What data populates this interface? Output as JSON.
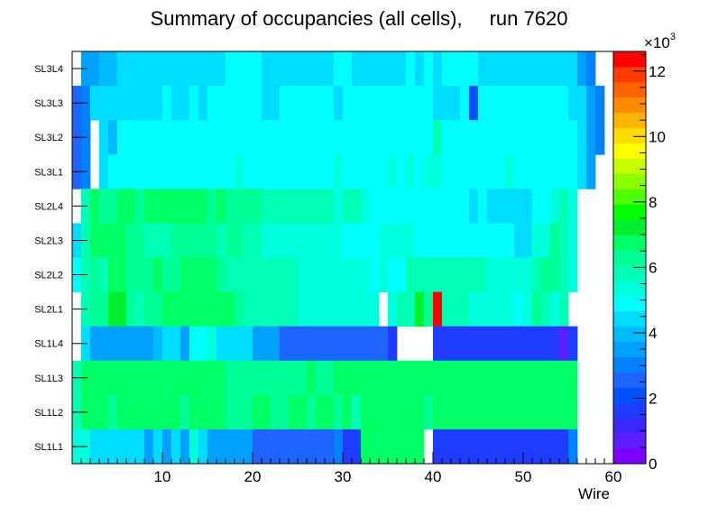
{
  "chart_data": {
    "type": "heatmap",
    "title": "Summary of occupancies (all cells),",
    "run_label": "run 7620",
    "xlabel": "Wire",
    "ylabel": "",
    "xlim": [
      0,
      60
    ],
    "x_ticks": [
      "10",
      "20",
      "30",
      "40",
      "50",
      "60"
    ],
    "layers": [
      "SL3L4",
      "SL3L3",
      "SL3L2",
      "SL3L1",
      "SL2L4",
      "SL2L3",
      "SL2L2",
      "SL2L1",
      "SL1L4",
      "SL1L3",
      "SL1L2",
      "SL1L1"
    ],
    "colorbar": {
      "min": 0,
      "max": 12.6,
      "multiplier": "×10",
      "multiplier_exponent": "3",
      "ticks": [
        "0",
        "2",
        "4",
        "6",
        "8",
        "10",
        "12"
      ]
    },
    "palette": [
      "#8000ff",
      "#5a1eff",
      "#3c28ff",
      "#1e3cff",
      "#0050ff",
      "#1e64ff",
      "#0082ff",
      "#00a0ff",
      "#00bcff",
      "#00ddff",
      "#00ffff",
      "#00ffdc",
      "#00ffb4",
      "#00ff96",
      "#00ff64",
      "#00f030",
      "#00ff00",
      "#50ff00",
      "#8cff00",
      "#c8ff00",
      "#ffff00",
      "#ffdc00",
      "#ffb400",
      "#ff8c00",
      "#ff6400",
      "#ff3c00",
      "#ff0000"
    ],
    "occupancy_thousands": {
      "SL3L4": {
        "segments": [
          [
            1,
            1,
            null
          ],
          [
            2,
            3,
            3.6
          ],
          [
            4,
            5,
            3.9
          ],
          [
            6,
            17,
            4.4
          ],
          [
            18,
            21,
            4.8
          ],
          [
            22,
            29,
            4.4
          ],
          [
            30,
            31,
            4.8
          ],
          [
            32,
            37,
            4.4
          ],
          [
            38,
            38,
            4.8
          ],
          [
            39,
            39,
            4.4
          ],
          [
            40,
            40,
            4.8
          ],
          [
            41,
            41,
            4.4
          ],
          [
            42,
            45,
            4.8
          ],
          [
            46,
            56,
            4.4
          ],
          [
            57,
            57,
            3.6
          ],
          [
            58,
            58,
            3.0
          ],
          [
            59,
            60,
            null
          ]
        ]
      },
      "SL3L3": {
        "segments": [
          [
            1,
            1,
            2.5
          ],
          [
            2,
            2,
            3.2
          ],
          [
            3,
            10,
            4.4
          ],
          [
            11,
            11,
            4.8
          ],
          [
            12,
            13,
            4.4
          ],
          [
            14,
            14,
            4.8
          ],
          [
            15,
            15,
            4.4
          ],
          [
            16,
            16,
            4.8
          ],
          [
            17,
            21,
            4.8
          ],
          [
            22,
            23,
            4.4
          ],
          [
            24,
            29,
            4.8
          ],
          [
            30,
            30,
            4.4
          ],
          [
            31,
            40,
            4.8
          ],
          [
            41,
            43,
            4.4
          ],
          [
            44,
            44,
            4.8
          ],
          [
            45,
            45,
            2.2
          ],
          [
            46,
            55,
            4.8
          ],
          [
            56,
            57,
            4.4
          ],
          [
            58,
            58,
            3.6
          ],
          [
            59,
            59,
            3.2
          ],
          [
            60,
            60,
            null
          ]
        ]
      },
      "SL3L2": {
        "segments": [
          [
            1,
            1,
            2.6
          ],
          [
            2,
            2,
            3.2
          ],
          [
            3,
            3,
            null
          ],
          [
            4,
            4,
            4.4
          ],
          [
            5,
            5,
            3.9
          ],
          [
            6,
            40,
            4.8
          ],
          [
            41,
            41,
            5.6
          ],
          [
            42,
            45,
            4.8
          ],
          [
            46,
            56,
            4.8
          ],
          [
            57,
            57,
            4.4
          ],
          [
            58,
            58,
            3.6
          ],
          [
            59,
            59,
            3.2
          ],
          [
            60,
            60,
            null
          ]
        ]
      },
      "SL3L1": {
        "segments": [
          [
            1,
            1,
            2.6
          ],
          [
            2,
            2,
            3.2
          ],
          [
            3,
            3,
            null
          ],
          [
            4,
            4,
            4.4
          ],
          [
            5,
            18,
            4.8
          ],
          [
            19,
            19,
            5.2
          ],
          [
            20,
            29,
            4.8
          ],
          [
            30,
            30,
            5.2
          ],
          [
            31,
            35,
            4.8
          ],
          [
            36,
            36,
            5.2
          ],
          [
            37,
            37,
            4.8
          ],
          [
            38,
            38,
            5.2
          ],
          [
            39,
            39,
            4.8
          ],
          [
            40,
            41,
            5.2
          ],
          [
            42,
            48,
            4.8
          ],
          [
            49,
            49,
            5.2
          ],
          [
            50,
            56,
            4.8
          ],
          [
            57,
            57,
            4.4
          ],
          [
            58,
            58,
            3.6
          ],
          [
            59,
            60,
            null
          ]
        ]
      },
      "SL2L4": {
        "segments": [
          [
            1,
            1,
            null
          ],
          [
            2,
            2,
            5.6
          ],
          [
            3,
            3,
            6.6
          ],
          [
            4,
            5,
            6.2
          ],
          [
            6,
            7,
            6.6
          ],
          [
            8,
            8,
            6.2
          ],
          [
            9,
            15,
            6.6
          ],
          [
            16,
            16,
            6.2
          ],
          [
            17,
            17,
            6.6
          ],
          [
            18,
            21,
            6.2
          ],
          [
            22,
            29,
            5.6
          ],
          [
            30,
            30,
            5.2
          ],
          [
            31,
            32,
            5.6
          ],
          [
            33,
            33,
            5.2
          ],
          [
            34,
            34,
            4.8
          ],
          [
            35,
            37,
            4.8
          ],
          [
            38,
            44,
            4.8
          ],
          [
            45,
            45,
            4.4
          ],
          [
            46,
            46,
            4.8
          ],
          [
            47,
            51,
            4.4
          ],
          [
            52,
            53,
            4.8
          ],
          [
            54,
            54,
            5.2
          ],
          [
            55,
            55,
            5.6
          ],
          [
            56,
            56,
            5.2
          ],
          [
            57,
            60,
            null
          ]
        ]
      },
      "SL2L3": {
        "segments": [
          [
            1,
            1,
            4.4
          ],
          [
            2,
            2,
            5.6
          ],
          [
            3,
            6,
            6.6
          ],
          [
            7,
            8,
            6.2
          ],
          [
            9,
            11,
            5.6
          ],
          [
            12,
            13,
            6.2
          ],
          [
            14,
            15,
            6.2
          ],
          [
            16,
            16,
            6.2
          ],
          [
            17,
            17,
            5.6
          ],
          [
            18,
            19,
            6.2
          ],
          [
            20,
            21,
            5.6
          ],
          [
            22,
            30,
            5.2
          ],
          [
            31,
            34,
            4.8
          ],
          [
            35,
            38,
            5.2
          ],
          [
            39,
            49,
            4.8
          ],
          [
            50,
            51,
            4.4
          ],
          [
            52,
            53,
            5.2
          ],
          [
            54,
            54,
            6.2
          ],
          [
            55,
            55,
            5.6
          ],
          [
            56,
            56,
            5.2
          ],
          [
            57,
            60,
            null
          ]
        ]
      },
      "SL2L2": {
        "segments": [
          [
            1,
            1,
            4.8
          ],
          [
            2,
            2,
            5.6
          ],
          [
            3,
            3,
            6.2
          ],
          [
            4,
            4,
            5.6
          ],
          [
            5,
            6,
            6.6
          ],
          [
            7,
            7,
            6.2
          ],
          [
            8,
            9,
            6.2
          ],
          [
            10,
            10,
            6.6
          ],
          [
            11,
            12,
            6.2
          ],
          [
            13,
            14,
            6.6
          ],
          [
            15,
            16,
            6.6
          ],
          [
            17,
            17,
            6.2
          ],
          [
            18,
            21,
            5.6
          ],
          [
            22,
            23,
            5.6
          ],
          [
            24,
            25,
            5.6
          ],
          [
            26,
            33,
            5.2
          ],
          [
            34,
            34,
            4.8
          ],
          [
            35,
            35,
            5.2
          ],
          [
            36,
            37,
            4.8
          ],
          [
            38,
            41,
            5.6
          ],
          [
            42,
            45,
            5.6
          ],
          [
            46,
            46,
            5.6
          ],
          [
            47,
            51,
            5.2
          ],
          [
            52,
            52,
            5.6
          ],
          [
            53,
            54,
            6.2
          ],
          [
            55,
            55,
            5.6
          ],
          [
            56,
            56,
            5.2
          ],
          [
            57,
            60,
            null
          ]
        ]
      },
      "SL2L1": {
        "segments": [
          [
            1,
            1,
            null
          ],
          [
            2,
            2,
            5.6
          ],
          [
            3,
            4,
            6.2
          ],
          [
            5,
            6,
            7.4
          ],
          [
            7,
            7,
            6.2
          ],
          [
            8,
            8,
            5.6
          ],
          [
            9,
            10,
            6.2
          ],
          [
            11,
            18,
            6.6
          ],
          [
            19,
            19,
            6.2
          ],
          [
            20,
            25,
            5.6
          ],
          [
            26,
            33,
            5.2
          ],
          [
            34,
            34,
            5.2
          ],
          [
            35,
            35,
            null
          ],
          [
            36,
            36,
            5.2
          ],
          [
            37,
            38,
            5.6
          ],
          [
            39,
            39,
            7.4
          ],
          [
            40,
            40,
            6.2
          ],
          [
            41,
            41,
            12.6
          ],
          [
            42,
            44,
            5.6
          ],
          [
            45,
            49,
            5.2
          ],
          [
            50,
            50,
            4.8
          ],
          [
            51,
            51,
            5.2
          ],
          [
            52,
            52,
            6.2
          ],
          [
            53,
            53,
            5.6
          ],
          [
            54,
            54,
            5.2
          ],
          [
            55,
            55,
            5.6
          ],
          [
            56,
            60,
            null
          ]
        ]
      },
      "SL1L4": {
        "segments": [
          [
            1,
            1,
            null
          ],
          [
            2,
            2,
            4.4
          ],
          [
            3,
            4,
            3.6
          ],
          [
            5,
            9,
            3.3
          ],
          [
            10,
            10,
            4.0
          ],
          [
            11,
            12,
            4.4
          ],
          [
            13,
            13,
            3.6
          ],
          [
            14,
            15,
            4.8
          ],
          [
            16,
            16,
            5.2
          ],
          [
            17,
            19,
            4.4
          ],
          [
            20,
            20,
            4.4
          ],
          [
            21,
            23,
            3.3
          ],
          [
            24,
            35,
            2.6
          ],
          [
            36,
            36,
            1.6
          ],
          [
            37,
            40,
            null
          ],
          [
            41,
            54,
            1.7
          ],
          [
            55,
            55,
            0.8
          ],
          [
            56,
            56,
            1.5
          ],
          [
            57,
            60,
            null
          ]
        ]
      },
      "SL1L3": {
        "segments": [
          [
            1,
            1,
            5.6
          ],
          [
            2,
            17,
            6.6
          ],
          [
            18,
            20,
            6.2
          ],
          [
            21,
            26,
            6.2
          ],
          [
            27,
            27,
            6.6
          ],
          [
            28,
            29,
            6.2
          ],
          [
            30,
            41,
            6.6
          ],
          [
            42,
            56,
            6.6
          ],
          [
            57,
            60,
            null
          ]
        ]
      },
      "SL1L2": {
        "segments": [
          [
            1,
            1,
            5.6
          ],
          [
            2,
            4,
            6.6
          ],
          [
            5,
            5,
            6.2
          ],
          [
            6,
            12,
            6.6
          ],
          [
            13,
            13,
            6.2
          ],
          [
            14,
            17,
            6.6
          ],
          [
            18,
            20,
            6.2
          ],
          [
            21,
            22,
            6.6
          ],
          [
            23,
            24,
            6.2
          ],
          [
            25,
            26,
            6.6
          ],
          [
            27,
            27,
            6.2
          ],
          [
            28,
            29,
            6.6
          ],
          [
            30,
            30,
            6.2
          ],
          [
            31,
            31,
            6.6
          ],
          [
            32,
            32,
            5.6
          ],
          [
            33,
            39,
            6.6
          ],
          [
            40,
            40,
            6.2
          ],
          [
            41,
            43,
            6.6
          ],
          [
            44,
            56,
            6.6
          ],
          [
            57,
            60,
            null
          ]
        ]
      },
      "SL1L1": {
        "segments": [
          [
            1,
            2,
            5.2
          ],
          [
            3,
            8,
            4.4
          ],
          [
            9,
            9,
            3.6
          ],
          [
            10,
            10,
            4.4
          ],
          [
            11,
            11,
            3.6
          ],
          [
            12,
            12,
            4.4
          ],
          [
            13,
            13,
            3.6
          ],
          [
            14,
            14,
            5.2
          ],
          [
            15,
            15,
            4.4
          ],
          [
            16,
            16,
            3.3
          ],
          [
            17,
            17,
            3.6
          ],
          [
            18,
            20,
            3.3
          ],
          [
            21,
            29,
            2.6
          ],
          [
            30,
            30,
            3.0
          ],
          [
            31,
            32,
            1.5
          ],
          [
            33,
            39,
            6.6
          ],
          [
            40,
            40,
            null
          ],
          [
            41,
            55,
            1.7
          ],
          [
            56,
            56,
            3.0
          ],
          [
            57,
            60,
            null
          ]
        ]
      }
    }
  }
}
